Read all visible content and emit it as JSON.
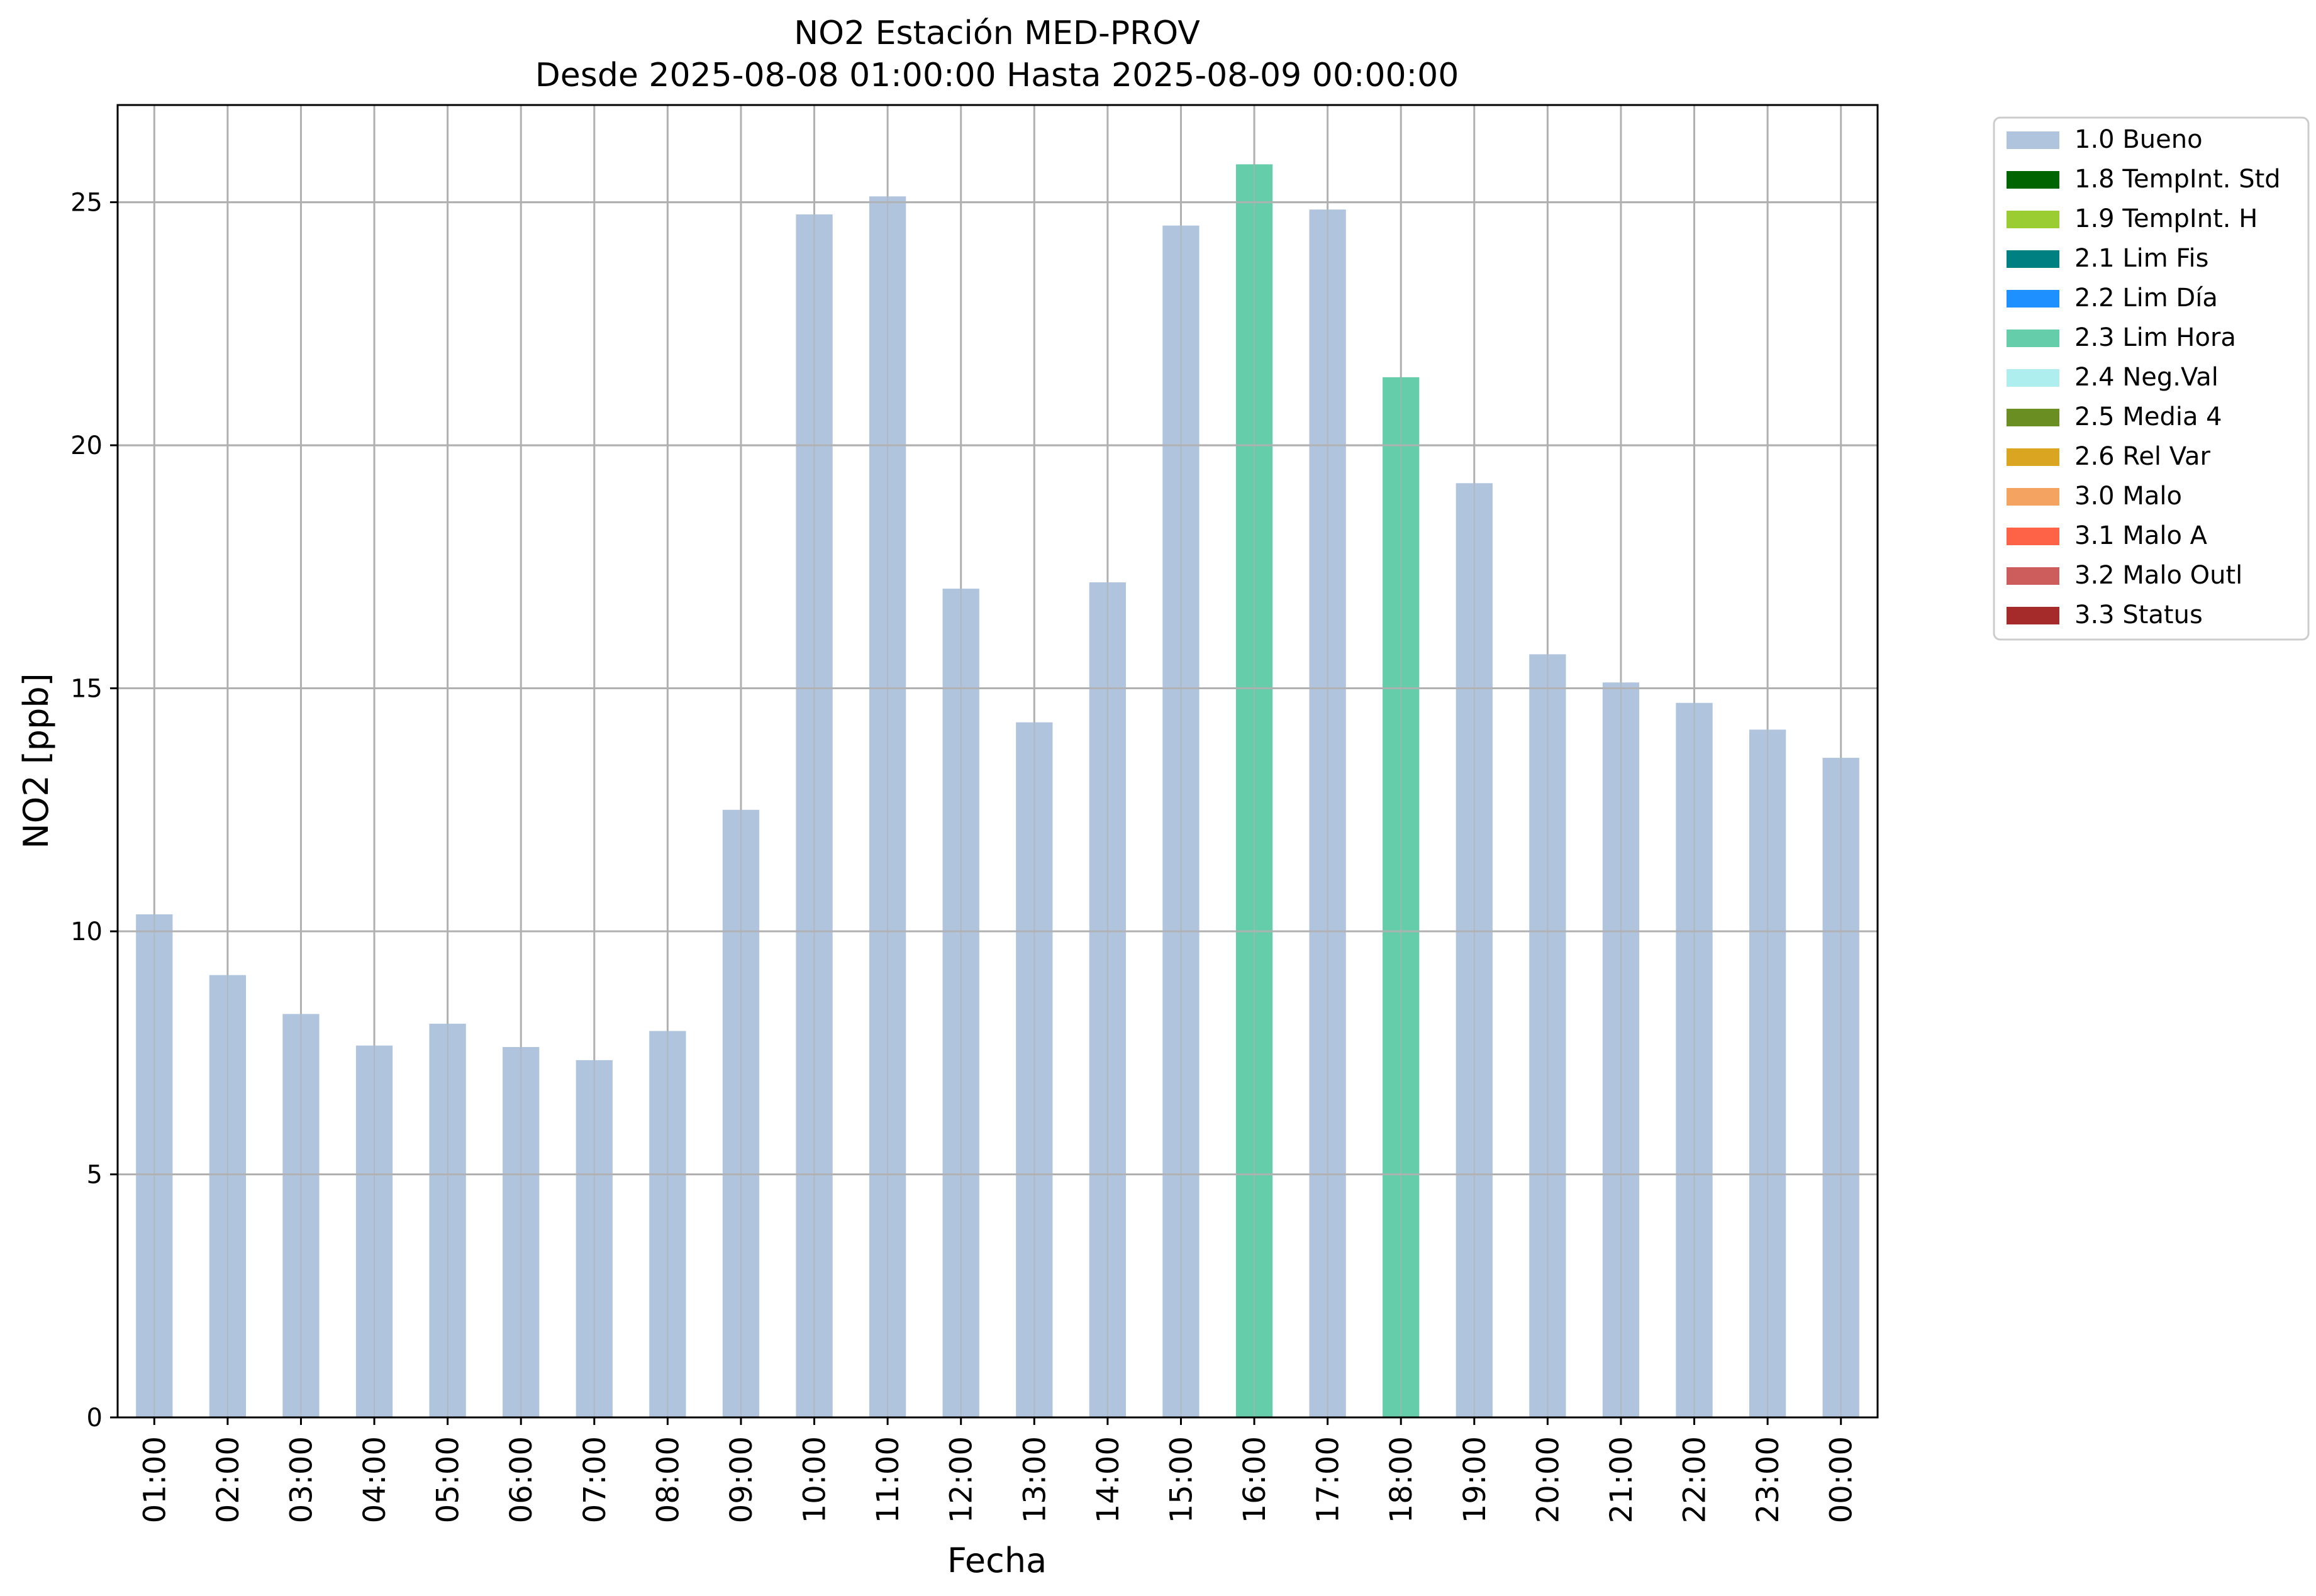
{
  "chart_data": {
    "type": "bar",
    "title": "NO2 Estación MED-PROV",
    "subtitle": "Desde 2025-08-08 01:00:00 Hasta 2025-08-09 00:00:00",
    "xlabel": "Fecha",
    "ylabel": "NO2 [ppb]",
    "ylim": [
      0,
      27
    ],
    "yticks": [
      0,
      5,
      10,
      15,
      20,
      25
    ],
    "grid": true,
    "legend_position": "outside-top-right",
    "categories": [
      "01:00",
      "02:00",
      "03:00",
      "04:00",
      "05:00",
      "06:00",
      "07:00",
      "08:00",
      "09:00",
      "10:00",
      "11:00",
      "12:00",
      "13:00",
      "14:00",
      "15:00",
      "16:00",
      "17:00",
      "18:00",
      "19:00",
      "20:00",
      "21:00",
      "22:00",
      "23:00",
      "00:00"
    ],
    "values": [
      10.35,
      9.1,
      8.3,
      7.65,
      8.1,
      7.62,
      7.35,
      7.95,
      12.5,
      24.75,
      25.12,
      17.05,
      14.3,
      17.18,
      24.52,
      25.78,
      24.85,
      21.4,
      19.22,
      15.7,
      15.12,
      14.7,
      14.15,
      13.57
    ],
    "flags": [
      "1.0",
      "1.0",
      "1.0",
      "1.0",
      "1.0",
      "1.0",
      "1.0",
      "1.0",
      "1.0",
      "1.0",
      "1.0",
      "1.0",
      "1.0",
      "1.0",
      "1.0",
      "2.3",
      "1.0",
      "2.3",
      "1.0",
      "1.0",
      "1.0",
      "1.0",
      "1.0",
      "1.0"
    ],
    "legend": [
      {
        "code": "1.0",
        "label": "1.0 Bueno",
        "color": "#b0c4de"
      },
      {
        "code": "1.8",
        "label": "1.8 TempInt. Std",
        "color": "#006400"
      },
      {
        "code": "1.9",
        "label": "1.9 TempInt. H",
        "color": "#9acd32"
      },
      {
        "code": "2.1",
        "label": "2.1 Lim Fis",
        "color": "#008080"
      },
      {
        "code": "2.2",
        "label": "2.2 Lim Día",
        "color": "#1e90ff"
      },
      {
        "code": "2.3",
        "label": "2.3 Lim Hora",
        "color": "#66cdaa"
      },
      {
        "code": "2.4",
        "label": "2.4 Neg.Val",
        "color": "#afeeee"
      },
      {
        "code": "2.5",
        "label": "2.5 Media 4",
        "color": "#6b8e23"
      },
      {
        "code": "2.6",
        "label": "2.6 Rel Var",
        "color": "#daa520"
      },
      {
        "code": "3.0",
        "label": "3.0 Malo",
        "color": "#f4a460"
      },
      {
        "code": "3.1",
        "label": "3.1 Malo A",
        "color": "#ff6347"
      },
      {
        "code": "3.2",
        "label": "3.2 Malo Outl",
        "color": "#cd5c5c"
      },
      {
        "code": "3.3",
        "label": "3.3 Status",
        "color": "#a52a2a"
      }
    ]
  }
}
